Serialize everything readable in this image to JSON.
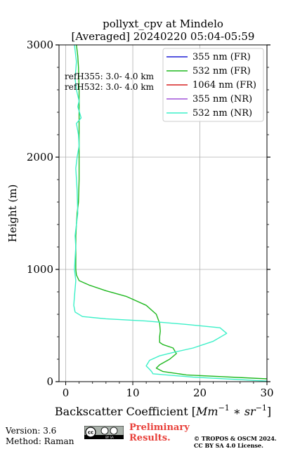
{
  "chart_data": {
    "type": "line",
    "title_line1": "pollyxt_cpv at Mindelo",
    "title_line2": "[Averaged] 20240220 05:04-05:59",
    "xlabel_prefix": "Backscatter Coefficient [",
    "xlabel_math": "Mm",
    "xlabel_exp1": "−1",
    "xlabel_mid": " ∗ sr",
    "xlabel_exp2": "−1",
    "xlabel_suffix": "]",
    "ylabel": "Height (m)",
    "xlim": [
      -1,
      30
    ],
    "ylim": [
      0,
      3000
    ],
    "x_ticks": [
      0,
      10,
      20,
      30
    ],
    "x_tick_labels": [
      "0",
      "10",
      "20",
      "30"
    ],
    "y_ticks": [
      0,
      1000,
      2000,
      3000
    ],
    "y_tick_labels": [
      "0",
      "1000",
      "2000",
      "3000"
    ],
    "grid": true,
    "legend_position": "top-right",
    "annotations": [
      "refH355:  3.0- 4.0 km",
      "refH532:  3.0- 4.0 km"
    ],
    "series": [
      {
        "name": "355 nm (FR)",
        "color": "#1f1fd6",
        "x": [],
        "y": []
      },
      {
        "name": "532 nm (FR)",
        "color": "#1fb81f",
        "x": [
          30,
          18,
          14.5,
          13.5,
          14,
          15.5,
          16.5,
          16,
          14.5,
          14,
          14,
          14.1,
          14,
          13.5,
          12,
          9,
          6,
          3.5,
          2,
          1.6,
          1.5,
          1.5,
          1.5,
          1.5,
          1.6,
          1.7,
          1.9,
          2.0,
          2.0,
          2.0,
          2.0,
          2.0,
          1.9,
          1.8,
          1.6
        ],
        "y": [
          25,
          60,
          90,
          120,
          150,
          200,
          250,
          300,
          330,
          350,
          400,
          450,
          520,
          600,
          680,
          760,
          810,
          860,
          900,
          950,
          1000,
          1100,
          1200,
          1300,
          1400,
          1500,
          1600,
          1800,
          2000,
          2200,
          2400,
          2600,
          2800,
          2900,
          3000
        ]
      },
      {
        "name": "1064 nm (FR)",
        "color": "#d62020",
        "x": [],
        "y": []
      },
      {
        "name": "355 nm (NR)",
        "color": "#a050d8",
        "x": [],
        "y": []
      },
      {
        "name": "532 nm (NR)",
        "color": "#3cf0c8",
        "x": [
          30,
          19,
          13,
          12.8,
          12.5,
          12,
          12.5,
          14,
          16,
          19,
          22,
          24,
          23,
          18,
          12,
          6,
          2.5,
          1.4,
          1.2,
          1.3,
          1.5,
          1.3,
          1.4,
          1.5,
          1.4,
          1.6,
          1.8,
          1.7,
          1.5,
          1.7,
          2.0,
          1.9,
          1.6,
          2.3,
          1.8,
          2.0,
          1.6,
          1.4,
          1.6,
          1.3
        ],
        "y": [
          5,
          40,
          70,
          90,
          110,
          140,
          190,
          230,
          260,
          300,
          360,
          430,
          480,
          510,
          540,
          560,
          580,
          620,
          680,
          760,
          900,
          1000,
          1100,
          1200,
          1300,
          1400,
          1500,
          1700,
          1900,
          2000,
          2100,
          2200,
          2300,
          2350,
          2450,
          2500,
          2600,
          2700,
          2850,
          3000
        ]
      }
    ]
  },
  "footer": {
    "version": "Version: 3.6",
    "method": "Method: Raman",
    "cc_text": "cc",
    "cc_sub": "BY   SA",
    "preliminary_line1": "Preliminary",
    "preliminary_line2": "Results.",
    "copyright_line1": "© TROPOS & OSCM 2024.",
    "copyright_line2": "CC BY SA 4.0 License."
  }
}
